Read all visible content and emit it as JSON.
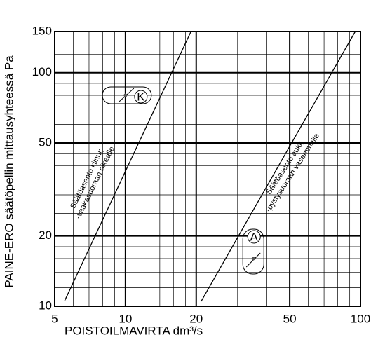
{
  "chart_data": {
    "type": "line",
    "x_label": "POISTOILMAVIRTA  dm³/s",
    "y_label": "PAINE-ERO  säätöpellin mittausyhteessä  Pa",
    "log_x": true,
    "log_y": true,
    "xlim": [
      5,
      100
    ],
    "ylim": [
      10,
      150
    ],
    "xticks": [
      5,
      10,
      20,
      50,
      100
    ],
    "yticks": [
      10,
      20,
      50,
      100,
      150
    ],
    "x_minor_ticks": [
      6,
      7,
      8,
      9,
      12,
      14,
      16,
      18,
      30,
      40,
      60,
      70,
      80,
      90
    ],
    "y_minor_ticks": [
      12,
      14,
      16,
      18,
      25,
      30,
      35,
      40,
      45,
      60,
      70,
      80,
      90,
      120
    ],
    "color": "#000000",
    "series": [
      {
        "x": [
          5.5,
          19
        ],
        "values": [
          10.5,
          150
        ]
      },
      {
        "x": [
          21,
          95
        ],
        "values": [
          10.5,
          150
        ]
      }
    ],
    "annotations": [
      {
        "lines": [
          "Säätöasento kiinni;",
          "-vaakasuoraan oikealle"
        ]
      },
      {
        "lines": [
          "Säätöasento auki;",
          "-pystysuoraan vasemmalle"
        ]
      }
    ],
    "markers": [
      {
        "label": "K",
        "x": 10,
        "y": 80
      },
      {
        "label": "A",
        "x": 35,
        "y": 16
      }
    ]
  }
}
